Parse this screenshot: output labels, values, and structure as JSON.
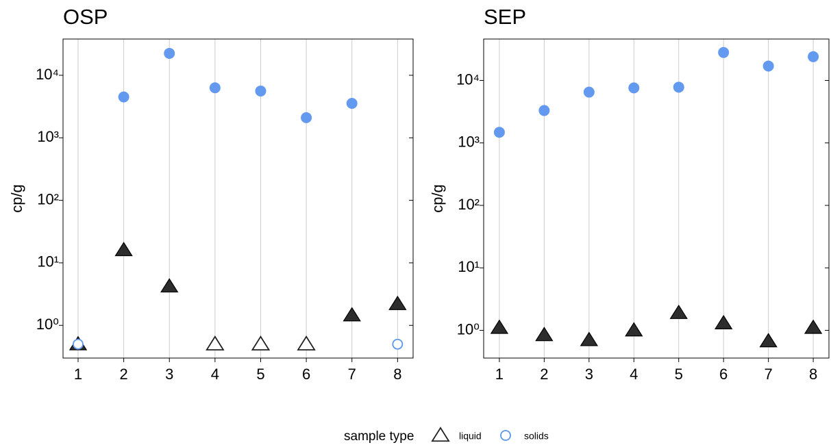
{
  "chart_data": [
    {
      "type": "scatter",
      "title": "OSP",
      "y_label": "cp/g",
      "log_y": true,
      "grid_x": true,
      "x": [
        1,
        2,
        3,
        4,
        5,
        6,
        7,
        8
      ],
      "xlim": [
        0.67,
        8.34
      ],
      "xticks": [
        1,
        2,
        3,
        4,
        5,
        6,
        7,
        8
      ],
      "ylim": [
        0.3,
        38000
      ],
      "yticks": [
        {
          "value": 1,
          "label": "10⁰"
        },
        {
          "value": 10,
          "label": "10¹"
        },
        {
          "value": 100,
          "label": "10²"
        },
        {
          "value": 1000,
          "label": "10³"
        },
        {
          "value": 10000,
          "label": "10⁴"
        }
      ],
      "series": [
        {
          "name": "liquid",
          "color": "#222222",
          "marker": "triangle",
          "values": [
            0.5,
            16,
            4.2,
            0.5,
            0.5,
            0.5,
            1.45,
            2.2
          ],
          "detected": [
            true,
            true,
            true,
            false,
            false,
            false,
            true,
            true
          ]
        },
        {
          "name": "solids",
          "color": "#5b95ef",
          "marker": "circle",
          "values": [
            0.5,
            4500,
            22400,
            6300,
            5600,
            2100,
            3550,
            0.5
          ],
          "detected": [
            false,
            true,
            true,
            true,
            true,
            true,
            true,
            false
          ]
        }
      ]
    },
    {
      "type": "scatter",
      "title": "SEP",
      "y_label": "cp/g",
      "log_y": true,
      "grid_x": true,
      "x": [
        1,
        2,
        3,
        4,
        5,
        6,
        7,
        8
      ],
      "xlim": [
        0.65,
        8.35
      ],
      "xticks": [
        1,
        2,
        3,
        4,
        5,
        6,
        7,
        8
      ],
      "ylim": [
        0.36,
        46000
      ],
      "yticks": [
        {
          "value": 1,
          "label": "10⁰"
        },
        {
          "value": 10,
          "label": "10¹"
        },
        {
          "value": 100,
          "label": "10²"
        },
        {
          "value": 1000,
          "label": "10³"
        },
        {
          "value": 10000,
          "label": "10⁴"
        }
      ],
      "series": [
        {
          "name": "liquid",
          "color": "#222222",
          "marker": "triangle",
          "values": [
            1.1,
            0.84,
            0.7,
            1.0,
            1.9,
            1.3,
            0.67,
            1.1
          ],
          "detected": [
            true,
            true,
            true,
            true,
            true,
            true,
            true,
            true
          ]
        },
        {
          "name": "solids",
          "color": "#5b95ef",
          "marker": "circle",
          "values": [
            1480,
            3300,
            6500,
            7600,
            7800,
            28000,
            17000,
            24000
          ],
          "detected": [
            true,
            true,
            true,
            true,
            true,
            true,
            true,
            true
          ]
        }
      ]
    }
  ],
  "legend_title": "sample type"
}
